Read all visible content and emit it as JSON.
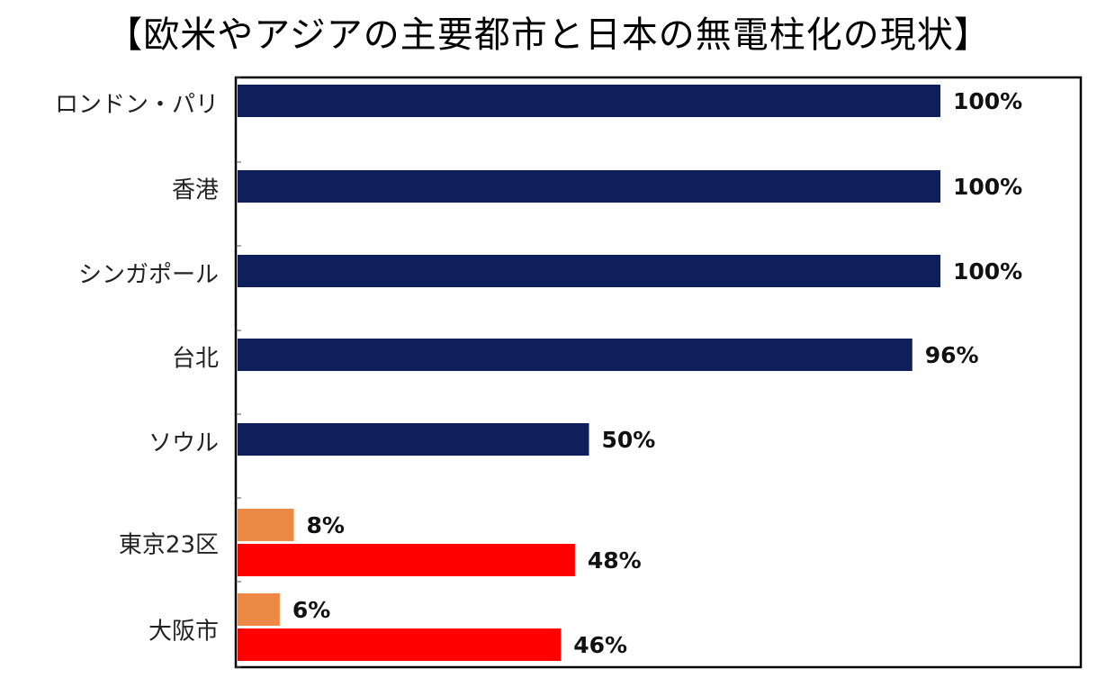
{
  "chart_data": {
    "type": "bar",
    "orientation": "horizontal",
    "title": "【欧米やアジアの主要都市と日本の無電柱化の現状】",
    "value_format": "percent",
    "xlim": [
      0,
      100
    ],
    "grid": false,
    "legend": "none",
    "colors": {
      "main": "#0f1f5c",
      "japan_a": "#ec8a45",
      "japan_b": "#fe0000"
    },
    "categories": [
      {
        "label": "ロンドン・パリ",
        "bars": [
          {
            "value": 100,
            "label": "100%",
            "color": "#0f1f5c"
          }
        ]
      },
      {
        "label": "香港",
        "bars": [
          {
            "value": 100,
            "label": "100%",
            "color": "#0f1f5c"
          }
        ]
      },
      {
        "label": "シンガポール",
        "bars": [
          {
            "value": 100,
            "label": "100%",
            "color": "#0f1f5c"
          }
        ]
      },
      {
        "label": "台北",
        "bars": [
          {
            "value": 96,
            "label": "96%",
            "color": "#0f1f5c"
          }
        ]
      },
      {
        "label": "ソウル",
        "bars": [
          {
            "value": 50,
            "label": "50%",
            "color": "#0f1f5c"
          }
        ]
      },
      {
        "label": "東京23区",
        "bars": [
          {
            "value": 8,
            "label": "8%",
            "color": "#ec8a45"
          },
          {
            "value": 48,
            "label": "48%",
            "color": "#fe0000"
          }
        ]
      },
      {
        "label": "大阪市",
        "bars": [
          {
            "value": 6,
            "label": "6%",
            "color": "#ec8a45"
          },
          {
            "value": 46,
            "label": "46%",
            "color": "#fe0000"
          }
        ]
      }
    ]
  }
}
